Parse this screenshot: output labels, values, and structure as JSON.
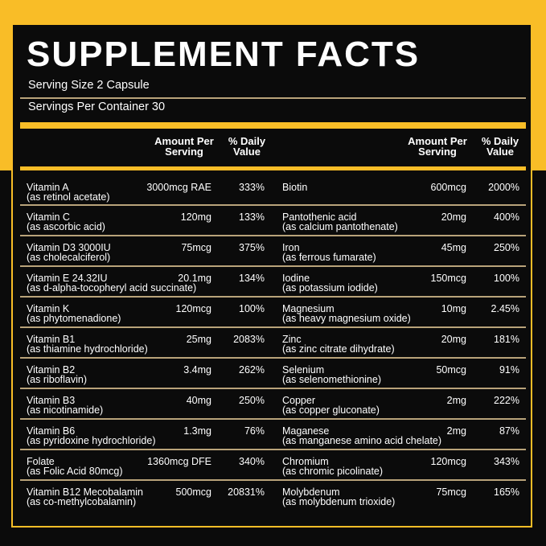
{
  "colors": {
    "accent": "#f9bd27",
    "background": "#0b0b0b",
    "divider": "#b9a37a"
  },
  "title": "SUPPLEMENT FACTS",
  "serving_size": "Serving Size 2 Capsule",
  "servings_per_container": "Servings Per Container 30",
  "headers": {
    "amount_1": "Amount Per",
    "amount_2": "Serving",
    "dv_1": "% Daily",
    "dv_2": "Value"
  },
  "left": [
    {
      "name": "Vitamin A",
      "source": "(as retinol acetate)",
      "amount": "3000mcg RAE",
      "dv": "333%"
    },
    {
      "name": "Vitamin C",
      "source": "(as ascorbic acid)",
      "amount": "120mg",
      "dv": "133%"
    },
    {
      "name": "Vitamin D3 3000IU",
      "source": "(as cholecalciferol)",
      "amount": "75mcg",
      "dv": "375%"
    },
    {
      "name": "Vitamin E 24.32IU",
      "source": "(as d-alpha-tocopheryl acid succinate)",
      "amount": "20.1mg",
      "dv": "134%"
    },
    {
      "name": "Vitamin K",
      "source": "(as phytomenadione)",
      "amount": "120mcg",
      "dv": "100%"
    },
    {
      "name": "Vitamin B1",
      "source": "(as thiamine hydrochloride)",
      "amount": "25mg",
      "dv": "2083%"
    },
    {
      "name": "Vitamin B2",
      "source": "(as riboflavin)",
      "amount": "3.4mg",
      "dv": "262%"
    },
    {
      "name": "Vitamin B3",
      "source": "(as nicotinamide)",
      "amount": "40mg",
      "dv": "250%"
    },
    {
      "name": "Vitamin B6",
      "source": "(as pyridoxine hydrochloride)",
      "amount": "1.3mg",
      "dv": "76%"
    },
    {
      "name": "Folate",
      "source": "(as Folic Acid 80mcg)",
      "amount": "1360mcg DFE",
      "dv": "340%"
    },
    {
      "name": "Vitamin B12 Mecobalamin",
      "source": "(as co-methylcobalamin)",
      "amount": "500mcg",
      "dv": "20831%"
    }
  ],
  "right": [
    {
      "name": "Biotin",
      "source": "",
      "amount": "600mcg",
      "dv": "2000%"
    },
    {
      "name": "Pantothenic acid",
      "source": "(as calcium pantothenate)",
      "amount": "20mg",
      "dv": "400%"
    },
    {
      "name": "Iron",
      "source": "(as ferrous fumarate)",
      "amount": "45mg",
      "dv": "250%"
    },
    {
      "name": "Iodine",
      "source": "(as potassium iodide)",
      "amount": "150mcg",
      "dv": "100%"
    },
    {
      "name": "Magnesium",
      "source": "(as heavy magnesium oxide)",
      "amount": "10mg",
      "dv": "2.45%"
    },
    {
      "name": "Zinc",
      "source": "(as zinc citrate dihydrate)",
      "amount": "20mg",
      "dv": "181%"
    },
    {
      "name": "Selenium",
      "source": "(as selenomethionine)",
      "amount": "50mcg",
      "dv": "91%"
    },
    {
      "name": "Copper",
      "source": "(as copper gluconate)",
      "amount": "2mg",
      "dv": "222%"
    },
    {
      "name": "Maganese",
      "source": "(as manganese amino acid chelate)",
      "amount": "2mg",
      "dv": "87%"
    },
    {
      "name": "Chromium",
      "source": "(as chromic picolinate)",
      "amount": "120mcg",
      "dv": "343%"
    },
    {
      "name": "Molybdenum",
      "source": "(as molybdenum trioxide)",
      "amount": "75mcg",
      "dv": "165%"
    }
  ]
}
